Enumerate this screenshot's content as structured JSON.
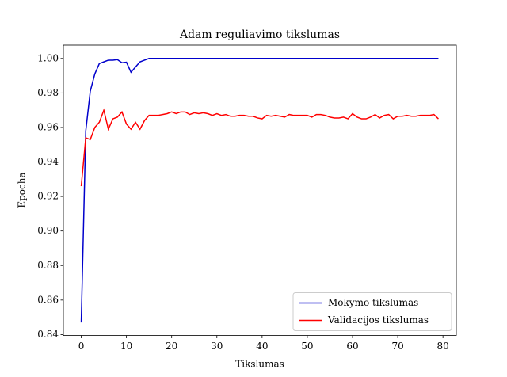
{
  "chart_data": {
    "type": "line",
    "title": "Adam reguliavimo tikslumas",
    "xlabel": "Tikslumas",
    "ylabel": "Epocha",
    "x": [
      0,
      1,
      2,
      3,
      4,
      5,
      6,
      7,
      8,
      9,
      10,
      11,
      12,
      13,
      14,
      15,
      16,
      17,
      18,
      19,
      20,
      21,
      22,
      23,
      24,
      25,
      26,
      27,
      28,
      29,
      30,
      31,
      32,
      33,
      34,
      35,
      36,
      37,
      38,
      39,
      40,
      41,
      42,
      43,
      44,
      45,
      46,
      47,
      48,
      49,
      50,
      51,
      52,
      53,
      54,
      55,
      56,
      57,
      58,
      59,
      60,
      61,
      62,
      63,
      64,
      65,
      66,
      67,
      68,
      69,
      70,
      71,
      72,
      73,
      74,
      75,
      76,
      77,
      78,
      79
    ],
    "series": [
      {
        "name": "Mokymo tikslumas",
        "color": "#0000cc",
        "values": [
          0.847,
          0.958,
          0.981,
          0.991,
          0.997,
          0.998,
          0.999,
          0.999,
          0.9993,
          0.9975,
          0.9978,
          0.992,
          0.995,
          0.998,
          0.999,
          1.0,
          1.0,
          1.0,
          1.0,
          1.0,
          1.0,
          1.0,
          1.0,
          1.0,
          1.0,
          1.0,
          1.0,
          1.0,
          1.0,
          1.0,
          1.0,
          1.0,
          1.0,
          1.0,
          1.0,
          1.0,
          1.0,
          1.0,
          1.0,
          1.0,
          1.0,
          1.0,
          1.0,
          1.0,
          1.0,
          1.0,
          1.0,
          1.0,
          1.0,
          1.0,
          1.0,
          1.0,
          1.0,
          1.0,
          1.0,
          1.0,
          1.0,
          1.0,
          1.0,
          1.0,
          1.0,
          1.0,
          1.0,
          1.0,
          1.0,
          1.0,
          1.0,
          1.0,
          1.0,
          1.0,
          1.0,
          1.0,
          1.0,
          1.0,
          1.0,
          1.0,
          1.0,
          1.0,
          1.0,
          1.0
        ]
      },
      {
        "name": "Validacijos tikslumas",
        "color": "#ff0000",
        "values": [
          0.926,
          0.954,
          0.953,
          0.96,
          0.963,
          0.97,
          0.959,
          0.965,
          0.966,
          0.969,
          0.962,
          0.959,
          0.963,
          0.959,
          0.964,
          0.967,
          0.967,
          0.967,
          0.9675,
          0.968,
          0.969,
          0.968,
          0.969,
          0.969,
          0.9675,
          0.9685,
          0.968,
          0.9685,
          0.968,
          0.967,
          0.968,
          0.967,
          0.9675,
          0.9665,
          0.9665,
          0.967,
          0.967,
          0.9665,
          0.9665,
          0.9655,
          0.965,
          0.967,
          0.9665,
          0.967,
          0.9665,
          0.966,
          0.9675,
          0.967,
          0.967,
          0.967,
          0.967,
          0.966,
          0.9675,
          0.9675,
          0.967,
          0.966,
          0.9655,
          0.9655,
          0.966,
          0.965,
          0.968,
          0.966,
          0.965,
          0.965,
          0.966,
          0.9675,
          0.9655,
          0.967,
          0.9675,
          0.965,
          0.9665,
          0.9665,
          0.967,
          0.9665,
          0.9665,
          0.967,
          0.967,
          0.967,
          0.9675,
          0.965
        ]
      }
    ],
    "xlim": [
      -3.95,
      82.95
    ],
    "xticks": [
      0,
      10,
      20,
      30,
      40,
      50,
      60,
      70,
      80
    ],
    "ylim": [
      0.8395,
      1.0077
    ],
    "yticks": [
      {
        "value": 0.84,
        "label": "0.84"
      },
      {
        "value": 0.86,
        "label": "0.86"
      },
      {
        "value": 0.88,
        "label": "0.88"
      },
      {
        "value": 0.9,
        "label": "0.90"
      },
      {
        "value": 0.92,
        "label": "0.92"
      },
      {
        "value": 0.94,
        "label": "0.94"
      },
      {
        "value": 0.96,
        "label": "0.96"
      },
      {
        "value": 0.98,
        "label": "0.98"
      },
      {
        "value": 1.0,
        "label": "1.00"
      }
    ],
    "grid": false,
    "legend": "lower right"
  }
}
